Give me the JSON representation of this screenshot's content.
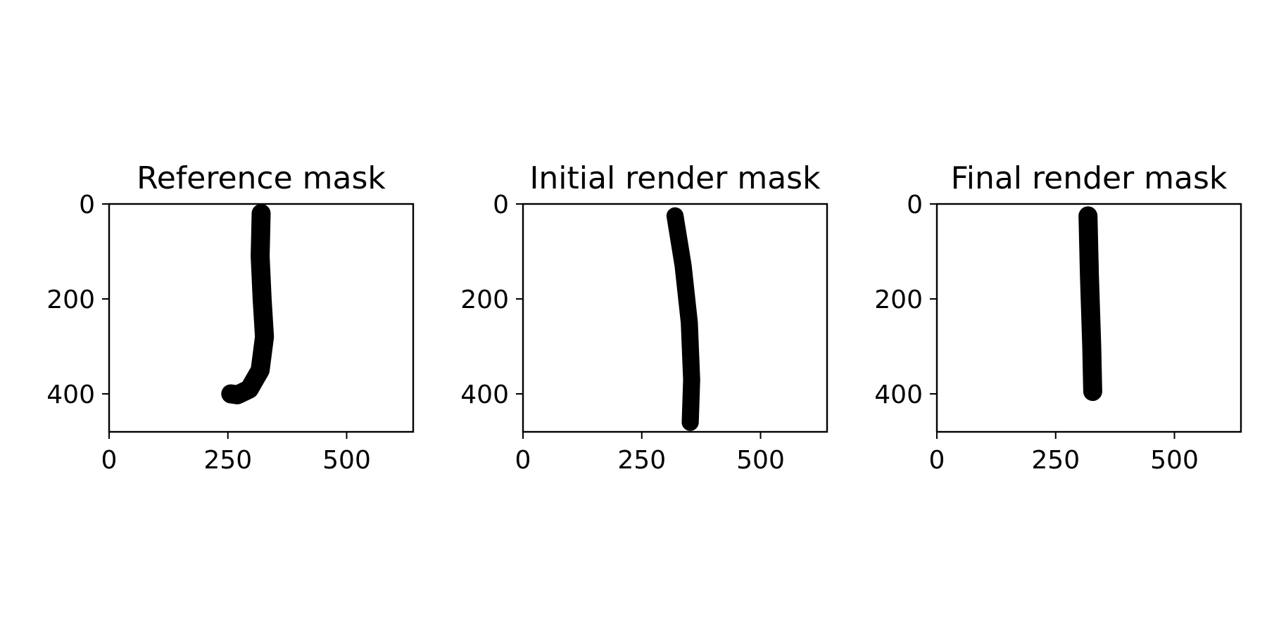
{
  "figure": {
    "background": "#ffffff",
    "stroke_color": "#000000"
  },
  "chart_data": [
    {
      "type": "image",
      "title": "Reference mask",
      "xlim": [
        0,
        640
      ],
      "ylim": [
        480,
        0
      ],
      "xticks": [
        0,
        250,
        500
      ],
      "yticks": [
        0,
        200,
        400
      ],
      "stroke": {
        "centerline": [
          [
            320,
            20
          ],
          [
            318,
            110
          ],
          [
            322,
            200
          ],
          [
            327,
            280
          ],
          [
            318,
            350
          ],
          [
            295,
            390
          ],
          [
            270,
            402
          ],
          [
            256,
            400
          ]
        ],
        "width": 40
      }
    },
    {
      "type": "image",
      "title": "Initial render mask",
      "xlim": [
        0,
        640
      ],
      "ylim": [
        480,
        0
      ],
      "xticks": [
        0,
        250,
        500
      ],
      "yticks": [
        0,
        200,
        400
      ],
      "stroke": {
        "centerline": [
          [
            320,
            25
          ],
          [
            337,
            130
          ],
          [
            350,
            250
          ],
          [
            355,
            370
          ],
          [
            352,
            460
          ]
        ],
        "width": 36
      }
    },
    {
      "type": "image",
      "title": "Final render mask",
      "xlim": [
        0,
        640
      ],
      "ylim": [
        480,
        0
      ],
      "xticks": [
        0,
        250,
        500
      ],
      "yticks": [
        0,
        200,
        400
      ],
      "stroke": {
        "centerline": [
          [
            318,
            25
          ],
          [
            321,
            150
          ],
          [
            326,
            300
          ],
          [
            328,
            395
          ]
        ],
        "width": 40
      }
    }
  ]
}
